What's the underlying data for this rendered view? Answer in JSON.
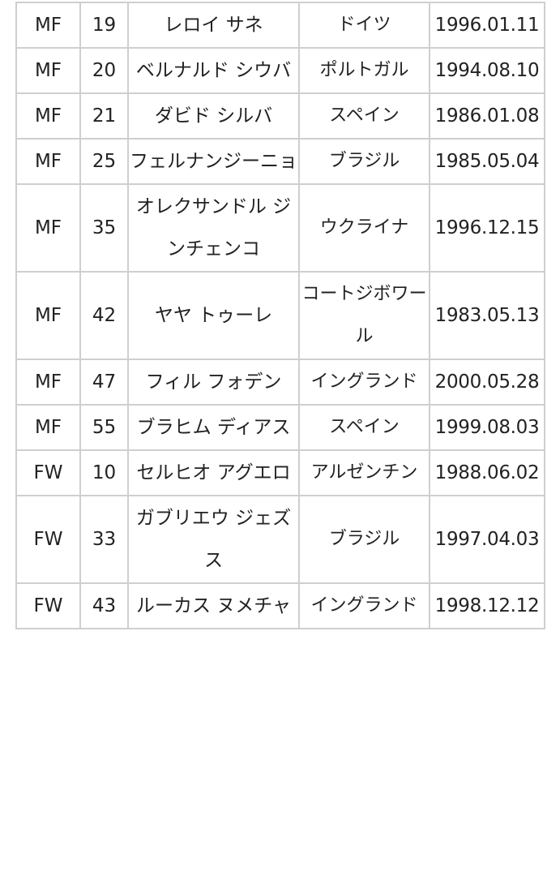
{
  "table": {
    "rows": [
      {
        "pos": "MF",
        "num": "19",
        "name": "レロイ サネ",
        "country": "ドイツ",
        "birth": "1996.01.11"
      },
      {
        "pos": "MF",
        "num": "20",
        "name": "ベルナルド シウバ",
        "country": "ポルトガル",
        "birth": "1994.08.10"
      },
      {
        "pos": "MF",
        "num": "21",
        "name": "ダビド シルバ",
        "country": "スペイン",
        "birth": "1986.01.08"
      },
      {
        "pos": "MF",
        "num": "25",
        "name": "フェルナンジーニョ",
        "country": "ブラジル",
        "birth": "1985.05.04"
      },
      {
        "pos": "MF",
        "num": "35",
        "name": "オレクサンドル ジンチェンコ",
        "country": "ウクライナ",
        "birth": "1996.12.15"
      },
      {
        "pos": "MF",
        "num": "42",
        "name": "ヤヤ トゥーレ",
        "country": "コートジボワール",
        "birth": "1983.05.13"
      },
      {
        "pos": "MF",
        "num": "47",
        "name": "フィル フォデン",
        "country": "イングランド",
        "birth": "2000.05.28"
      },
      {
        "pos": "MF",
        "num": "55",
        "name": "ブラヒム ディアス",
        "country": "スペイン",
        "birth": "1999.08.03"
      },
      {
        "pos": "FW",
        "num": "10",
        "name": "セルヒオ アグエロ",
        "country": "アルゼンチン",
        "birth": "1988.06.02"
      },
      {
        "pos": "FW",
        "num": "33",
        "name": "ガブリエウ ジェズス",
        "country": "ブラジル",
        "birth": "1997.04.03"
      },
      {
        "pos": "FW",
        "num": "43",
        "name": "ルーカス ヌメチャ",
        "country": "イングランド",
        "birth": "1998.12.12"
      }
    ]
  }
}
